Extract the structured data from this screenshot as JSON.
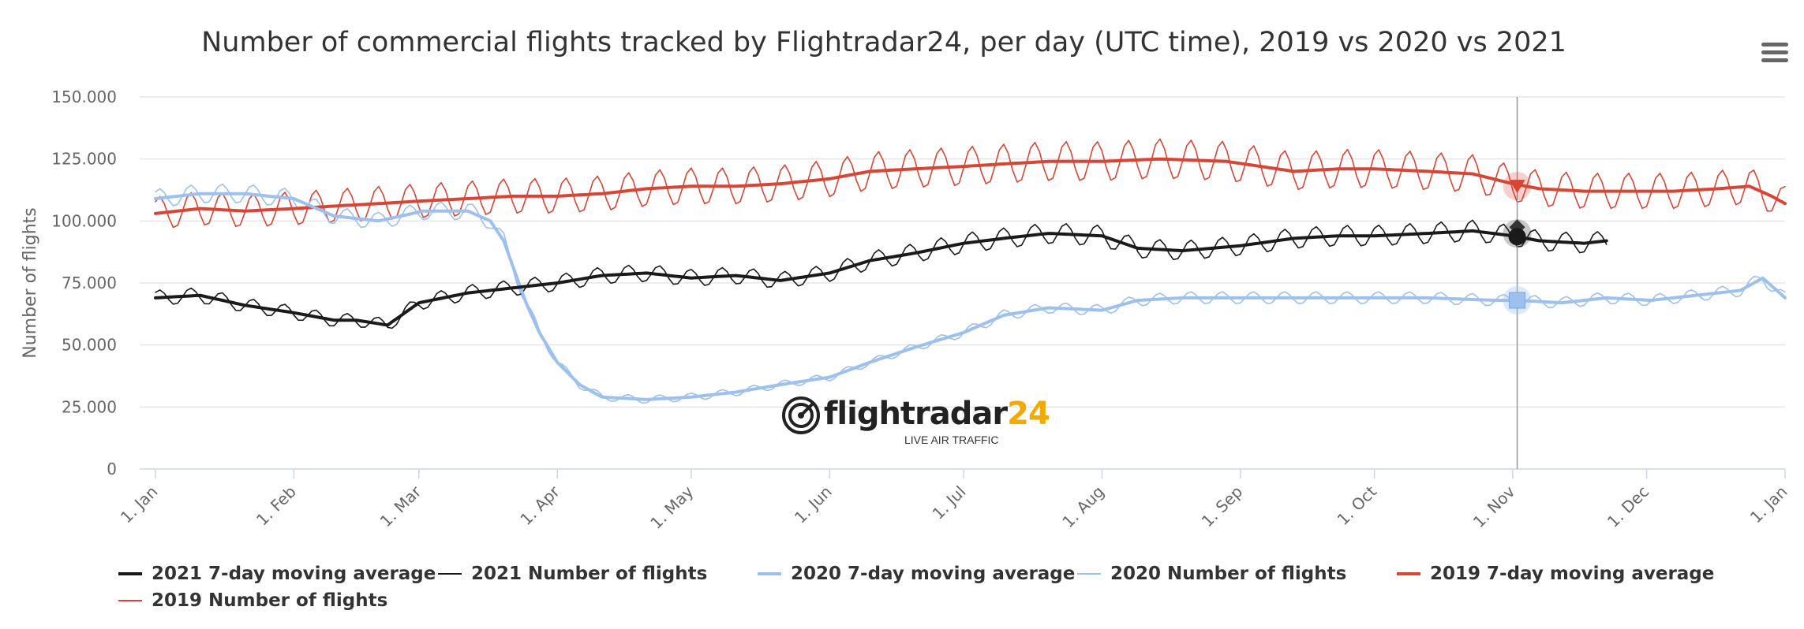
{
  "chart_data": {
    "type": "line",
    "title": "Number of commercial flights tracked by Flightradar24, per day (UTC time), 2019 vs 2020 vs 2021",
    "ylabel": "Number of flights",
    "ylim": [
      0,
      150000
    ],
    "yticks": [
      "150.000",
      "125.000",
      "100.000",
      "75.000",
      "50.000",
      "25.000",
      "0"
    ],
    "ytick_values": [
      150000,
      125000,
      100000,
      75000,
      50000,
      25000,
      0
    ],
    "xticks": [
      "1. Jan",
      "1. Feb",
      "1. Mar",
      "1. Apr",
      "1. May",
      "1. Jun",
      "1. Jul",
      "1. Aug",
      "1. Sep",
      "1. Oct",
      "1. Nov",
      "1. Dec",
      "1. Jan"
    ],
    "xtick_days": [
      0,
      31,
      59,
      90,
      120,
      151,
      181,
      212,
      243,
      273,
      304,
      334,
      365
    ],
    "x_unit": "day of year",
    "crosshair_day": 305,
    "grid": true,
    "legend_position": "bottom-left",
    "series": [
      {
        "name": "2021 7-day moving average",
        "color": "#1a1a1a",
        "kind": "average",
        "x": [
          0,
          10,
          20,
          31,
          40,
          45,
          52,
          59,
          70,
          80,
          90,
          100,
          110,
          120,
          130,
          140,
          151,
          160,
          170,
          181,
          190,
          200,
          212,
          220,
          230,
          243,
          255,
          265,
          273,
          285,
          295,
          304,
          310,
          320,
          325
        ],
        "y": [
          69000,
          70000,
          66000,
          63000,
          60000,
          60000,
          58000,
          67000,
          71000,
          73000,
          75000,
          78000,
          79000,
          77000,
          78000,
          76000,
          79000,
          84000,
          87000,
          91000,
          93000,
          95000,
          94000,
          89000,
          88000,
          90000,
          93000,
          94000,
          94000,
          95000,
          96000,
          94000,
          92000,
          91000,
          92000
        ]
      },
      {
        "name": "2021 Number of flights",
        "color": "#1a1a1a",
        "kind": "daily",
        "base_series": 0,
        "amplitude": 4500,
        "x_end": 325
      },
      {
        "name": "2020 7-day moving average",
        "color": "#9dc0ec",
        "kind": "average",
        "x": [
          0,
          10,
          20,
          31,
          40,
          50,
          60,
          70,
          75,
          78,
          80,
          83,
          86,
          90,
          95,
          100,
          110,
          120,
          130,
          140,
          151,
          160,
          170,
          181,
          190,
          200,
          212,
          220,
          230,
          240,
          255,
          270,
          285,
          300,
          305,
          315,
          325,
          335,
          345,
          355,
          360,
          365
        ],
        "y": [
          109000,
          111000,
          111000,
          109000,
          102000,
          100000,
          104000,
          104000,
          100000,
          92000,
          82000,
          67000,
          55000,
          43000,
          34000,
          29000,
          28000,
          29000,
          31000,
          34000,
          37000,
          43000,
          49000,
          55000,
          62000,
          65000,
          64000,
          68000,
          69000,
          69000,
          69000,
          69000,
          69000,
          68000,
          68000,
          67000,
          69000,
          68000,
          70000,
          72000,
          77000,
          69000
        ]
      },
      {
        "name": "2020 Number of flights",
        "color": "#9dc0ec",
        "kind": "daily",
        "base_series": 2,
        "amplitude": 3500,
        "x_end": 365
      },
      {
        "name": "2019 7-day moving average",
        "color": "#d94535",
        "kind": "average",
        "x": [
          0,
          10,
          20,
          31,
          40,
          50,
          59,
          70,
          80,
          90,
          100,
          110,
          120,
          130,
          140,
          151,
          160,
          170,
          181,
          190,
          200,
          212,
          225,
          240,
          255,
          265,
          273,
          285,
          295,
          304,
          310,
          320,
          330,
          340,
          350,
          357,
          362,
          365
        ],
        "y": [
          103000,
          105000,
          104000,
          105000,
          106000,
          107000,
          108000,
          109000,
          110000,
          110000,
          111000,
          113000,
          114000,
          114000,
          115000,
          117000,
          120000,
          121000,
          122000,
          123000,
          124000,
          124000,
          125000,
          124000,
          120000,
          121000,
          121000,
          120000,
          119000,
          115000,
          113000,
          112000,
          112000,
          112000,
          113000,
          114000,
          110000,
          107000
        ]
      },
      {
        "name": "2019 Number of flights",
        "color": "#d94535",
        "kind": "daily",
        "base_series": 4,
        "amplitude": 6500,
        "x_end": 365
      }
    ]
  },
  "legend": {
    "items": [
      "2021 7-day moving average",
      "2021 Number of flights",
      "2020 7-day moving average",
      "2020 Number of flights",
      "2019 7-day moving average",
      "2019 Number of flights"
    ]
  },
  "watermark": {
    "brand_main": "flightradar",
    "brand_accent": "24",
    "tagline": "LIVE AIR TRAFFIC",
    "logo_icon": "radar-logo-icon"
  },
  "menu": {
    "icon": "hamburger-menu-icon"
  }
}
